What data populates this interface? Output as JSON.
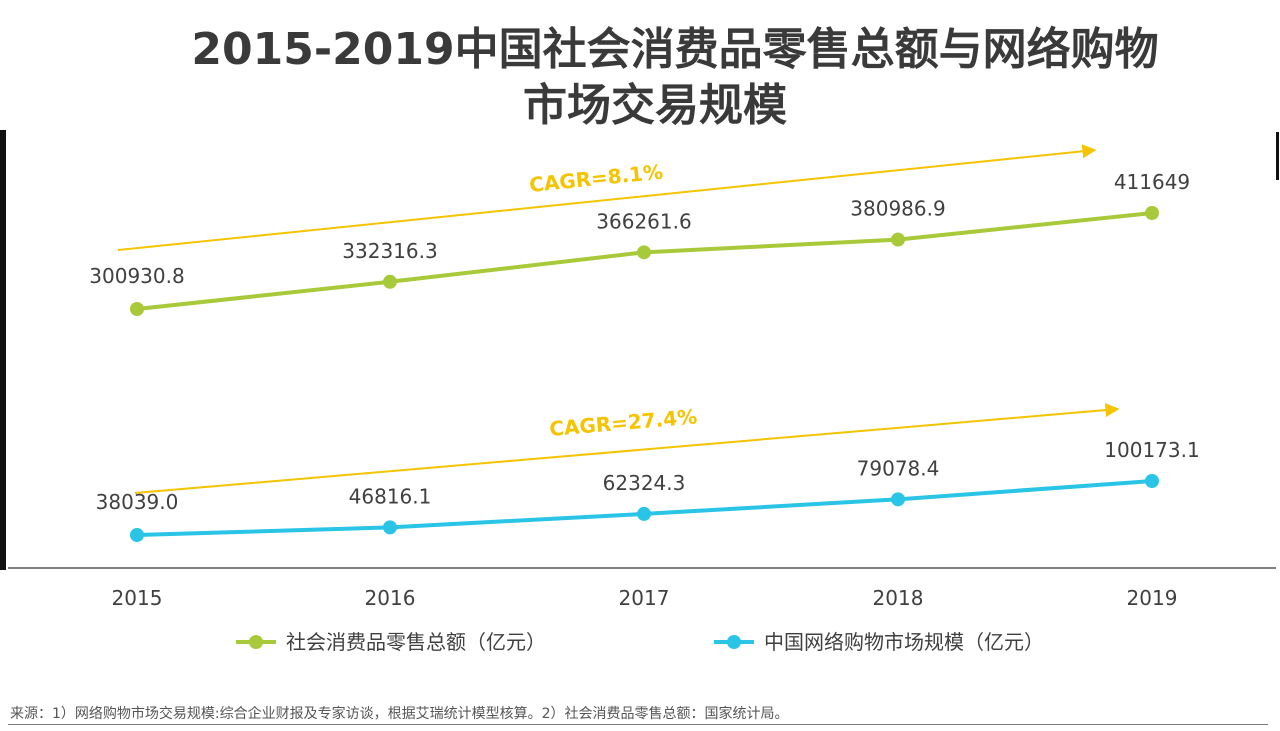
{
  "title": {
    "line1": "2015-2019中国社会消费品零售总额与网络购物",
    "line2": "市场交易规模"
  },
  "source": "来源：1）网络购物市场交易规模:综合企业财报及专家访谈，根据艾瑞统计模型核算。2）社会消费品零售总额：国家统计局。",
  "chart_data": {
    "type": "line",
    "categories": [
      "2015",
      "2016",
      "2017",
      "2018",
      "2019"
    ],
    "series": [
      {
        "name": "社会消费品零售总额（亿元）",
        "color": "#a8c93a",
        "values": [
          300930.8,
          332316.3,
          366261.6,
          380986.9,
          411649
        ],
        "labels": [
          "300930.8",
          "332316.3",
          "366261.6",
          "380986.9",
          "411649"
        ],
        "cagr_label": "CAGR=8.1%"
      },
      {
        "name": "中国网络购物市场规模（亿元）",
        "color": "#29c4e6",
        "values": [
          38039.0,
          46816.1,
          62324.3,
          79078.4,
          100173.1
        ],
        "labels": [
          "38039.0",
          "46816.1",
          "62324.3",
          "79078.4",
          "100173.1"
        ],
        "cagr_label": "CAGR=27.4%"
      }
    ],
    "annotation_color": "#f5c400",
    "legend_position": "bottom",
    "grid": false
  }
}
